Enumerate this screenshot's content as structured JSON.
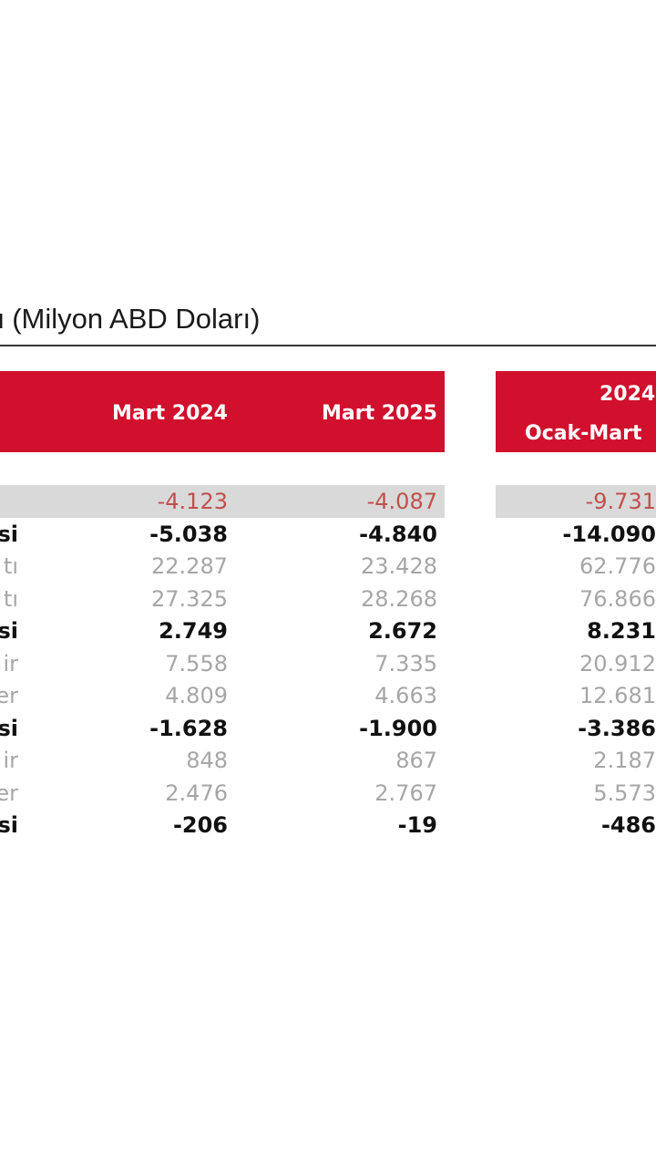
{
  "title": {
    "bold_part": "ı",
    "regular_part": " (Milyon ABD Doları)"
  },
  "header": {
    "col1": "Mart 2024",
    "col2": "Mart 2025",
    "side_line1": "2024",
    "side_line2": "Ocak-Mart"
  },
  "rows": [
    {
      "label": "",
      "v1": "-4.123",
      "v2": "-4.087",
      "v3": "-9.731"
    },
    {
      "label": "si",
      "v1": "-5.038",
      "v2": "-4.840",
      "v3": "-14.090"
    },
    {
      "label": "tı",
      "v1": "22.287",
      "v2": "23.428",
      "v3": "62.776"
    },
    {
      "label": "tı",
      "v1": "27.325",
      "v2": "28.268",
      "v3": "76.866"
    },
    {
      "label": "si",
      "v1": "2.749",
      "v2": "2.672",
      "v3": "8.231"
    },
    {
      "label": "ir",
      "v1": "7.558",
      "v2": "7.335",
      "v3": "20.912"
    },
    {
      "label": "er",
      "v1": "4.809",
      "v2": "4.663",
      "v3": "12.681"
    },
    {
      "label": "si",
      "v1": "-1.628",
      "v2": "-1.900",
      "v3": "-3.386"
    },
    {
      "label": "ir",
      "v1": "848",
      "v2": "867",
      "v3": "2.187"
    },
    {
      "label": "er",
      "v1": "2.476",
      "v2": "2.767",
      "v3": "5.573"
    },
    {
      "label": "si",
      "v1": "-206",
      "v2": "-19",
      "v3": "-486"
    }
  ],
  "colors": {
    "header_red": "#d0102d",
    "highlight_gray": "#d9d9d9",
    "negative_red": "#c0504d"
  }
}
